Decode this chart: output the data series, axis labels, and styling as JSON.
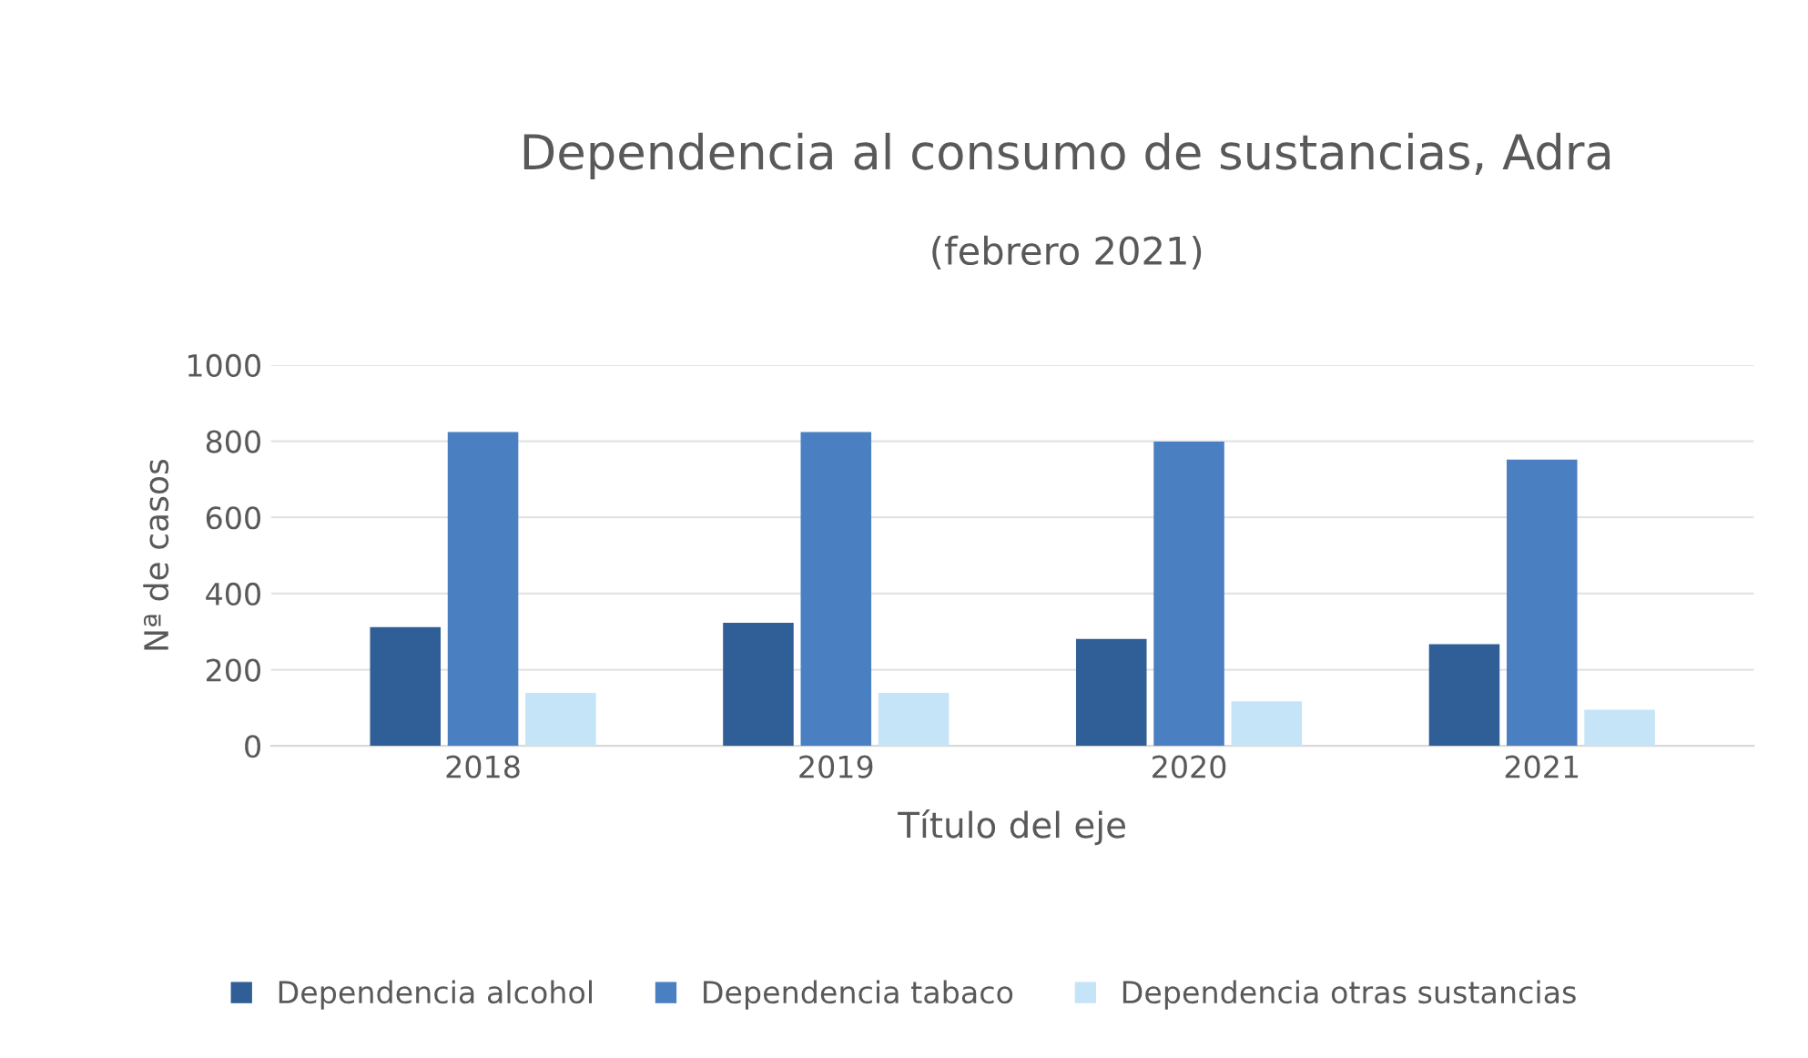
{
  "chart_data": {
    "type": "bar",
    "title": "Dependencia al consumo de sustancias, Adra",
    "subtitle": "(febrero 2021)",
    "xlabel": "Título del eje",
    "ylabel": "Nª de casos",
    "categories": [
      "2018",
      "2019",
      "2020",
      "2021"
    ],
    "series": [
      {
        "name": "Dependencia alcohol",
        "color": "#2f5f96",
        "values": [
          312,
          323,
          281,
          267
        ]
      },
      {
        "name": "Dependencia tabaco",
        "color": "#4a80c2",
        "values": [
          824,
          824,
          799,
          752
        ]
      },
      {
        "name": "Dependencia otras sustancias",
        "color": "#c6e4f7",
        "values": [
          139,
          139,
          117,
          95
        ]
      }
    ],
    "ylim": [
      0,
      1000
    ],
    "yticks": [
      0,
      200,
      400,
      600,
      800,
      1000
    ],
    "grid": "y",
    "legend": "bottom"
  }
}
